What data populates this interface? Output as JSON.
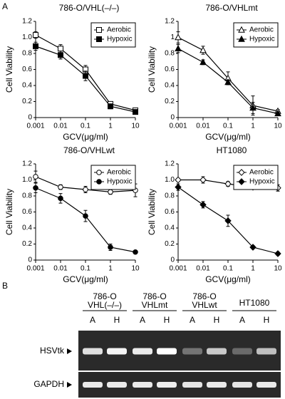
{
  "panel_labels": [
    "A",
    "B"
  ],
  "chart_data": [
    {
      "type": "line",
      "title": "786-O/VHL(–/–)",
      "x_label": "GCV(μg/ml)",
      "y_label": "Cell Viability",
      "x": [
        0.001,
        0.01,
        0.1,
        1,
        10
      ],
      "xscale": "log",
      "xlim": [
        0.001,
        10
      ],
      "xticks": [
        0.001,
        0.01,
        0.1,
        1,
        10
      ],
      "ylim": [
        0,
        1.2
      ],
      "yticks": [
        0,
        0.2,
        0.4,
        0.6,
        0.8,
        {
          "value": 1,
          "label": "1.0"
        },
        1.2
      ],
      "legend": "upper right",
      "series": [
        {
          "name": "Aerobic",
          "color": "#000000",
          "marker": "square",
          "filled": false,
          "values": [
            1.03,
            0.86,
            0.6,
            0.17,
            0.09
          ],
          "errors": [
            0.04,
            0.05,
            0.05,
            0.03,
            0.02
          ]
        },
        {
          "name": "Hypoxic",
          "color": "#000000",
          "marker": "square",
          "filled": true,
          "values": [
            0.89,
            0.78,
            0.52,
            0.14,
            0.07
          ],
          "errors": [
            0.05,
            0.05,
            0.06,
            0.03,
            0.02
          ]
        }
      ]
    },
    {
      "type": "line",
      "title": "786-O/VHLmt",
      "x_label": "GCV(μg/ml)",
      "y_label": "Cell Viability",
      "x": [
        0.001,
        0.01,
        0.1,
        1,
        10
      ],
      "xscale": "log",
      "xlim": [
        0.001,
        10
      ],
      "xticks": [
        0.001,
        0.01,
        0.1,
        1,
        10
      ],
      "ylim": [
        0,
        1.2
      ],
      "yticks": [
        0,
        0.2,
        0.4,
        0.6,
        0.8,
        1,
        1.2
      ],
      "legend": "upper right",
      "series": [
        {
          "name": "Aerobic",
          "color": "#000000",
          "marker": "triangle",
          "filled": false,
          "values": [
            1.0,
            0.84,
            0.49,
            0.15,
            0.08
          ],
          "errors": [
            0.07,
            0.05,
            0.08,
            0.12,
            0.02
          ]
        },
        {
          "name": "Hypoxic",
          "color": "#000000",
          "marker": "triangle",
          "filled": true,
          "values": [
            0.86,
            0.69,
            0.44,
            0.12,
            0.05
          ],
          "errors": [
            0.05,
            0.03,
            0.03,
            0.07,
            0.02
          ]
        }
      ]
    },
    {
      "type": "line",
      "title": "786-O/VHLwt",
      "x_label": "GCV(μg/ml)",
      "y_label": "Cell Viability",
      "x": [
        0.001,
        0.01,
        0.1,
        1,
        10
      ],
      "xscale": "log",
      "xlim": [
        0.001,
        10
      ],
      "xticks": [
        0.001,
        0.01,
        0.1,
        1,
        10
      ],
      "ylim": [
        0,
        1.2
      ],
      "yticks": [
        0,
        0.2,
        0.4,
        0.6,
        0.8,
        {
          "value": 1,
          "label": "1.0"
        },
        1.2
      ],
      "legend": "upper right",
      "series": [
        {
          "name": "Aerobic",
          "color": "#000000",
          "marker": "circle",
          "filled": false,
          "values": [
            1.04,
            0.91,
            0.88,
            0.85,
            0.87
          ],
          "errors": [
            0.07,
            0.03,
            0.04,
            0.03,
            0.08
          ]
        },
        {
          "name": "Hypoxic",
          "color": "#000000",
          "marker": "circle",
          "filled": true,
          "values": [
            0.9,
            0.77,
            0.55,
            0.16,
            0.1
          ],
          "errors": [
            0.06,
            0.06,
            0.07,
            0.04,
            0.02
          ]
        }
      ]
    },
    {
      "type": "line",
      "title": "HT1080",
      "x_label": "GCV(μg/ml)",
      "y_label": "Cell Viability",
      "x": [
        0.001,
        0.01,
        0.1,
        1,
        10
      ],
      "xscale": "log",
      "xlim": [
        0.001,
        10
      ],
      "xticks": [
        0.001,
        0.01,
        0.1,
        1,
        10
      ],
      "ylim": [
        0,
        1.2
      ],
      "yticks": [
        0,
        0.2,
        0.4,
        0.6,
        0.8,
        {
          "value": 1,
          "label": "1.0"
        },
        1.2
      ],
      "legend": "upper right",
      "series": [
        {
          "name": "Aerobic",
          "color": "#000000",
          "marker": "diamond",
          "filled": false,
          "values": [
            1.0,
            1.0,
            0.95,
            0.91,
            0.9
          ],
          "errors": [
            0.02,
            0.04,
            0.03,
            0.01,
            0.04
          ]
        },
        {
          "name": "Hypoxic",
          "color": "#000000",
          "marker": "diamond",
          "filled": true,
          "values": [
            0.91,
            0.69,
            0.49,
            0.16,
            0.08
          ],
          "errors": [
            0.04,
            0.04,
            0.07,
            0.02,
            0.02
          ]
        }
      ]
    }
  ],
  "gel": {
    "groups": [
      {
        "lines": [
          "786-O",
          "VHL(–/–)"
        ],
        "lanes": [
          "A",
          "H"
        ]
      },
      {
        "lines": [
          "786-O",
          "VHLmt"
        ],
        "lanes": [
          "A",
          "H"
        ]
      },
      {
        "lines": [
          "786-O",
          "VHLwt"
        ],
        "lanes": [
          "A",
          "H"
        ]
      },
      {
        "lines": [
          "HT1080"
        ],
        "lanes": [
          "A",
          "H"
        ]
      }
    ],
    "rows": [
      "HSVtk",
      "GAPDH"
    ]
  }
}
